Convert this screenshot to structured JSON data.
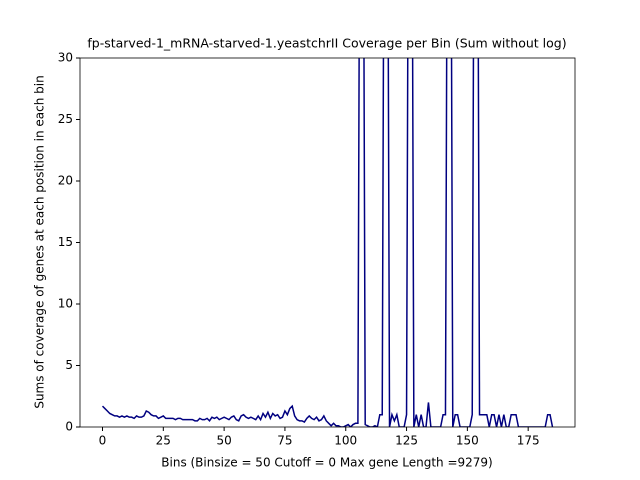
{
  "chart_data": {
    "type": "line",
    "title": "fp-starved-1_mRNA-starved-1.yeastchrII Coverage per Bin (Sum without log)",
    "xlabel": "Bins  (Binsize = 50 Cutoff = 0 Max gene Length =9279)",
    "ylabel": "Sums of coverage of genes at each position in each bin",
    "x": [
      0,
      1,
      2,
      3,
      4,
      5,
      6,
      7,
      8,
      9,
      10,
      11,
      12,
      13,
      14,
      15,
      16,
      17,
      18,
      19,
      20,
      21,
      22,
      23,
      24,
      25,
      26,
      27,
      28,
      29,
      30,
      31,
      32,
      33,
      34,
      35,
      36,
      37,
      38,
      39,
      40,
      41,
      42,
      43,
      44,
      45,
      46,
      47,
      48,
      49,
      50,
      51,
      52,
      53,
      54,
      55,
      56,
      57,
      58,
      59,
      60,
      61,
      62,
      63,
      64,
      65,
      66,
      67,
      68,
      69,
      70,
      71,
      72,
      73,
      74,
      75,
      76,
      77,
      78,
      79,
      80,
      81,
      82,
      83,
      84,
      85,
      86,
      87,
      88,
      89,
      90,
      91,
      92,
      93,
      94,
      95,
      96,
      97,
      98,
      99,
      100,
      101,
      102,
      103,
      104,
      105,
      106,
      107,
      108,
      109,
      110,
      111,
      112,
      113,
      114,
      115,
      116,
      117,
      118,
      119,
      120,
      121,
      122,
      123,
      124,
      125,
      126,
      127,
      128,
      129,
      130,
      131,
      132,
      133,
      134,
      135,
      136,
      137,
      138,
      139,
      140,
      141,
      142,
      143,
      144,
      145,
      146,
      147,
      148,
      149,
      150,
      151,
      152,
      153,
      154,
      155,
      156,
      157,
      158,
      159,
      160,
      161,
      162,
      163,
      164,
      165,
      166,
      167,
      168,
      169,
      170,
      171,
      172,
      173,
      174,
      175,
      176,
      177,
      178,
      179,
      180,
      181,
      182,
      183,
      184,
      185
    ],
    "series": [
      {
        "color": "#000080",
        "values": [
          1.7,
          1.5,
          1.3,
          1.1,
          1.0,
          0.9,
          0.9,
          0.8,
          0.9,
          0.8,
          0.9,
          0.8,
          0.8,
          0.7,
          0.9,
          0.8,
          0.8,
          0.9,
          1.3,
          1.2,
          1.0,
          0.9,
          0.9,
          0.7,
          0.8,
          0.9,
          0.7,
          0.7,
          0.7,
          0.7,
          0.6,
          0.7,
          0.7,
          0.6,
          0.6,
          0.6,
          0.6,
          0.6,
          0.5,
          0.5,
          0.7,
          0.6,
          0.6,
          0.7,
          0.5,
          0.8,
          0.7,
          0.8,
          0.6,
          0.7,
          0.8,
          0.7,
          0.6,
          0.8,
          0.9,
          0.6,
          0.5,
          0.9,
          1.0,
          0.8,
          0.7,
          0.8,
          0.7,
          0.6,
          0.9,
          0.6,
          1.1,
          0.8,
          1.2,
          0.7,
          1.1,
          0.9,
          1.0,
          0.7,
          0.8,
          1.3,
          1.0,
          1.5,
          1.7,
          0.9,
          0.6,
          0.5,
          0.5,
          0.4,
          0.7,
          0.9,
          0.7,
          0.6,
          0.8,
          0.5,
          0.6,
          0.9,
          0.5,
          0.3,
          0.1,
          0.3,
          0.1,
          0.1,
          0,
          0,
          0.1,
          0.2,
          0,
          0.2,
          0.3,
          0.3,
          60,
          60,
          0.2,
          0.1,
          0,
          0,
          0.1,
          0,
          1,
          1,
          60,
          60,
          0,
          1,
          0.5,
          1,
          0,
          0,
          0,
          1,
          60,
          60,
          0,
          1,
          0,
          1,
          0,
          0,
          2,
          0,
          0,
          0,
          0,
          0,
          1,
          1,
          60,
          60,
          0,
          1,
          1,
          0,
          0,
          0,
          0,
          0,
          1,
          60,
          60,
          1,
          1,
          1,
          1,
          0,
          1,
          1,
          0,
          1,
          0,
          1,
          0,
          0,
          1,
          1,
          1,
          0,
          0,
          0,
          0,
          0,
          0,
          0,
          0,
          0,
          0,
          0,
          0,
          1,
          1,
          0
        ]
      }
    ],
    "xlim": [
      -9.25,
      194.25
    ],
    "ylim": [
      0,
      30
    ],
    "xticks": [
      0,
      25,
      50,
      75,
      100,
      125,
      150,
      175
    ],
    "yticks": [
      0,
      5,
      10,
      15,
      20,
      25,
      30
    ]
  }
}
